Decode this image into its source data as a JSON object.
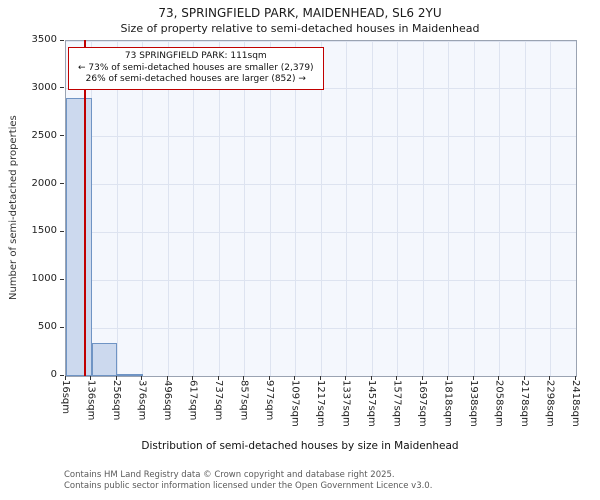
{
  "title": {
    "line1": "73, SPRINGFIELD PARK, MAIDENHEAD, SL6 2YU",
    "line2": "Size of property relative to semi-detached houses in Maidenhead"
  },
  "annotation": {
    "line1": "73 SPRINGFIELD PARK: 111sqm",
    "line2": "← 73% of semi-detached houses are smaller (2,379)",
    "line3": "26% of semi-detached houses are larger (852) →"
  },
  "chart_data": {
    "type": "bar",
    "title": "Size of property relative to semi-detached houses in Maidenhead",
    "xlabel": "Distribution of semi-detached houses by size in Maidenhead",
    "ylabel": "Number of semi-detached properties",
    "x_tick_labels": [
      "16sqm",
      "136sqm",
      "256sqm",
      "376sqm",
      "496sqm",
      "617sqm",
      "737sqm",
      "857sqm",
      "977sqm",
      "1097sqm",
      "1217sqm",
      "1337sqm",
      "1457sqm",
      "1577sqm",
      "1697sqm",
      "1818sqm",
      "1938sqm",
      "2058sqm",
      "2178sqm",
      "2298sqm",
      "2418sqm"
    ],
    "bin_edges_sqm": [
      16,
      136,
      256,
      376,
      496,
      617,
      737,
      857,
      977,
      1097,
      1217,
      1337,
      1457,
      1577,
      1697,
      1818,
      1938,
      2058,
      2178,
      2298,
      2418
    ],
    "values": [
      2900,
      350,
      15,
      0,
      0,
      0,
      0,
      0,
      0,
      0,
      0,
      0,
      0,
      0,
      0,
      0,
      0,
      0,
      0,
      0
    ],
    "ylim": [
      0,
      3500
    ],
    "y_ticks": [
      0,
      500,
      1000,
      1500,
      2000,
      2500,
      3000,
      3500
    ],
    "grid": "on",
    "marker_value_sqm": 111,
    "marker_label": "73 SPRINGFIELD PARK: 111sqm",
    "pct_smaller": "73%",
    "count_smaller": "2,379",
    "pct_larger": "26%",
    "count_larger": "852",
    "colors": {
      "bar_fill": "#ccd9ee",
      "bar_edge": "#6f94c4",
      "marker_line": "#c00000",
      "annotation_border": "#c00000",
      "plot_bg": "#f4f7fd",
      "grid_line": "#dde3f0"
    }
  },
  "footer": {
    "line1": "Contains HM Land Registry data © Crown copyright and database right 2025.",
    "line2": "Contains public sector information licensed under the Open Government Licence v3.0."
  }
}
